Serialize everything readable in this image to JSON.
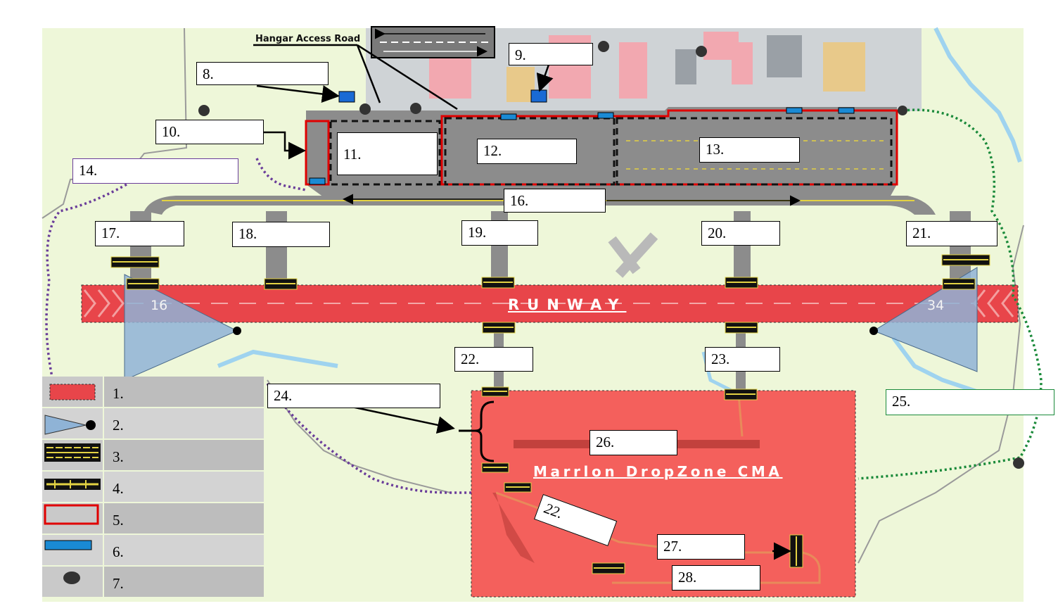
{
  "road_label": "Hangar Access Road",
  "runway": {
    "label": "RUNWAY",
    "end_north": "16",
    "end_south": "34"
  },
  "cma_label": "Marrlon DropZone CMA",
  "callouts": [
    {
      "id": "c8",
      "text": "8."
    },
    {
      "id": "c9",
      "text": "9."
    },
    {
      "id": "c10",
      "text": "10."
    },
    {
      "id": "c11",
      "text": "11."
    },
    {
      "id": "c12",
      "text": "12."
    },
    {
      "id": "c13",
      "text": "13."
    },
    {
      "id": "c14",
      "text": "14."
    },
    {
      "id": "c16",
      "text": "16."
    },
    {
      "id": "c17",
      "text": "17."
    },
    {
      "id": "c18",
      "text": "18."
    },
    {
      "id": "c19",
      "text": "19."
    },
    {
      "id": "c20",
      "text": "20."
    },
    {
      "id": "c21",
      "text": "21."
    },
    {
      "id": "c22a",
      "text": "22."
    },
    {
      "id": "c23",
      "text": "23."
    },
    {
      "id": "c24",
      "text": "24."
    },
    {
      "id": "c25",
      "text": "25."
    },
    {
      "id": "c26",
      "text": "26."
    },
    {
      "id": "c22b",
      "text": "22."
    },
    {
      "id": "c27",
      "text": "27."
    },
    {
      "id": "c28",
      "text": "28."
    }
  ],
  "legend": [
    {
      "num": "1.",
      "symbol": "runway-area-swatch"
    },
    {
      "num": "2.",
      "symbol": "approach-cone-symbol"
    },
    {
      "num": "3.",
      "symbol": "hold-position-marking-symbol"
    },
    {
      "num": "4.",
      "symbol": "ils-hold-marking-symbol"
    },
    {
      "num": "5.",
      "symbol": "red-boundary-box-symbol"
    },
    {
      "num": "6.",
      "symbol": "blue-marker-symbol"
    },
    {
      "num": "7.",
      "symbol": "black-dot-symbol"
    }
  ],
  "colors": {
    "runway_fill": "#e8454a",
    "cma_fill": "#f4605c",
    "pavement": "#8c8c8c",
    "grass": "#eef7d9",
    "approach_cone": "#8fb3d6",
    "boundary_red": "#e00000",
    "marker_blue": "#1a8ad4",
    "purple_path": "#6a3d9a",
    "green_path": "#1a8a3a"
  }
}
